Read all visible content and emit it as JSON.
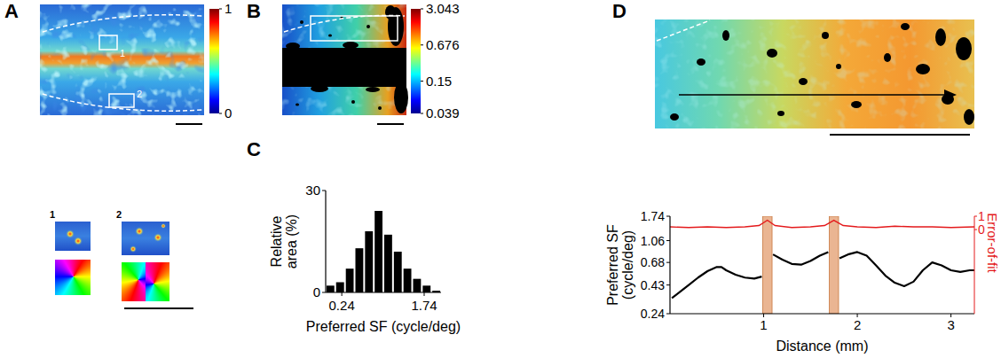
{
  "chart_data": [
    {
      "panel": "A",
      "type": "image",
      "colorbar": {
        "range": [
          0,
          1
        ],
        "ticks": [
          0,
          1
        ]
      },
      "annotations": [
        "1",
        "2"
      ]
    },
    {
      "panel": "B",
      "type": "image",
      "colorbar": {
        "range": [
          0.039,
          3.043
        ],
        "ticks": [
          0.039,
          0.15,
          0.676,
          3.043
        ],
        "log": true
      }
    },
    {
      "panel": "C",
      "type": "histogram",
      "xlabel": "Preferred SF (cycle/deg)",
      "ylabel": "Relative area (%)",
      "bins": [
        0.163,
        0.205,
        0.259,
        0.326,
        0.411,
        0.518,
        0.652,
        0.822,
        1.036,
        1.305,
        1.644,
        2.072,
        2.61
      ],
      "values": [
        2,
        3,
        7,
        13,
        18,
        24,
        17,
        12,
        7,
        4,
        2,
        0.5
      ],
      "color": "#000000",
      "xlim": [
        0.163,
        2.61
      ],
      "ylim": [
        0,
        30
      ],
      "xticks": [
        0.24,
        1.74
      ],
      "yticks": [
        0,
        30
      ],
      "log": "x"
    },
    {
      "panel": "D",
      "type": "image"
    },
    {
      "type": "line",
      "xlabel": "Distance (mm)",
      "ylabel": "Preferred SF (cycle/deg)",
      "y2label": "Error-of-fit",
      "xlim": [
        0,
        3.25
      ],
      "ylim": [
        0.24,
        1.74
      ],
      "y2lim": [
        -6.3,
        1
      ],
      "xticks": [
        1,
        2,
        3
      ],
      "yticks": [
        0.24,
        0.43,
        0.68,
        1.06,
        1.74
      ],
      "y2ticks": [
        0,
        1
      ],
      "log": "y",
      "bands": [
        [
          0.99,
          1.09
        ],
        [
          1.7,
          1.8
        ]
      ],
      "series": [
        {
          "color": "#000000",
          "x": [
            0.02,
            0.1,
            0.2,
            0.3,
            0.4,
            0.5,
            0.55,
            0.6,
            0.7,
            0.8,
            0.9,
            0.98,
            1.04,
            1.1,
            1.2,
            1.3,
            1.4,
            1.5,
            1.6,
            1.69,
            1.75,
            1.81,
            1.9,
            2.0,
            2.1,
            2.2,
            2.3,
            2.4,
            2.5,
            2.6,
            2.7,
            2.8,
            2.9,
            3.0,
            3.1,
            3.2,
            3.25
          ],
          "values": [
            0.33,
            0.37,
            0.43,
            0.5,
            0.57,
            0.62,
            0.62,
            0.58,
            0.53,
            0.5,
            0.49,
            0.51,
            null,
            0.8,
            0.72,
            0.66,
            0.65,
            0.7,
            0.78,
            0.84,
            null,
            0.74,
            0.8,
            0.84,
            0.78,
            0.64,
            0.52,
            0.45,
            0.42,
            0.46,
            0.58,
            0.68,
            0.64,
            0.58,
            0.56,
            0.58,
            0.58
          ]
        },
        {
          "color": "#e41a1c",
          "axis": "y2",
          "x": [
            0,
            0.2,
            0.4,
            0.6,
            0.8,
            0.95,
            1.04,
            1.12,
            1.3,
            1.5,
            1.65,
            1.75,
            1.85,
            2.0,
            2.2,
            2.4,
            2.6,
            2.8,
            3.0,
            3.25
          ],
          "values": [
            0.2,
            0.15,
            0.2,
            0.15,
            0.2,
            0.3,
            0.7,
            0.3,
            0.15,
            0.2,
            0.3,
            0.7,
            0.3,
            0.2,
            0.15,
            0.25,
            0.2,
            0.2,
            0.15,
            0.2
          ]
        }
      ]
    }
  ]
}
